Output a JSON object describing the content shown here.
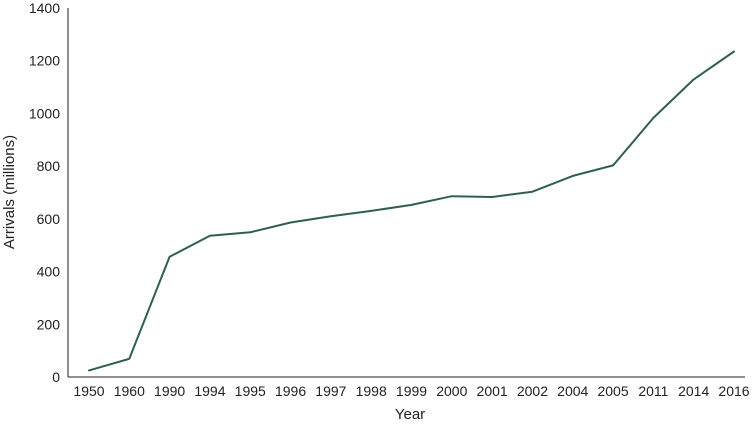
{
  "chart_data": {
    "type": "line",
    "xlabel": "Year",
    "ylabel": "Arrivals (millions)",
    "ylim": [
      0,
      1400
    ],
    "yticks": [
      "0",
      "200",
      "400",
      "600",
      "800",
      "1000",
      "1200",
      "1400"
    ],
    "categories": [
      "1950",
      "1960",
      "1990",
      "1994",
      "1995",
      "1996",
      "1997",
      "1998",
      "1999",
      "2000",
      "2001",
      "2002",
      "2004",
      "2005",
      "2011",
      "2014",
      "2016"
    ],
    "series": [
      {
        "values": [
          25,
          69,
          456,
          536,
          549,
          586,
          610,
          630,
          653,
          686,
          683,
          703,
          763,
          803,
          983,
          1129,
          1235
        ],
        "color": "#2f5e55"
      }
    ],
    "grid": false,
    "legend": "none"
  }
}
